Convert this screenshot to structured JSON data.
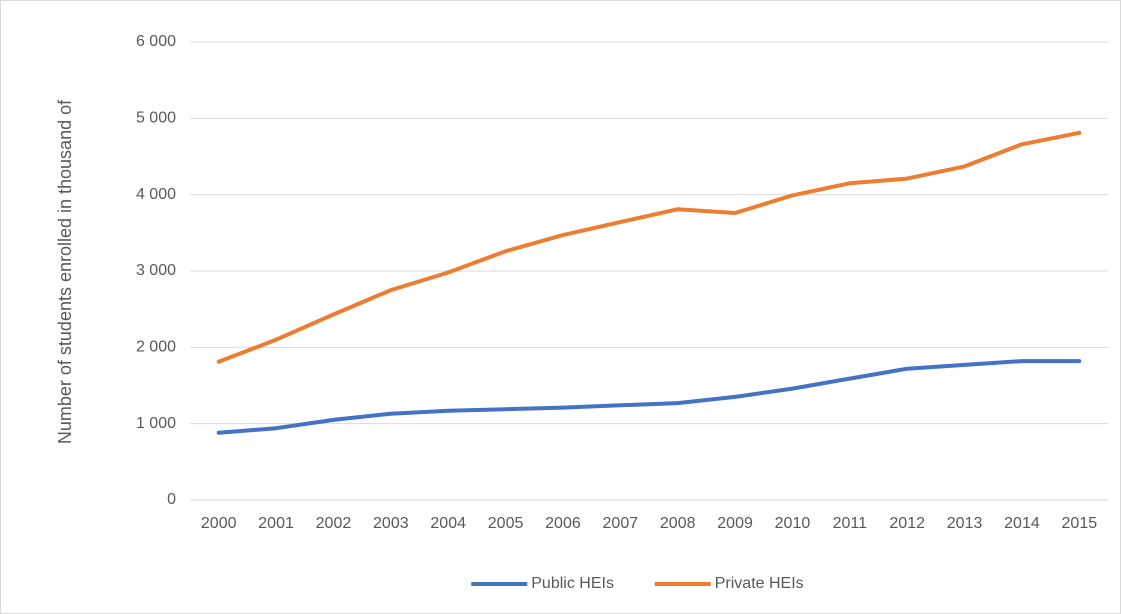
{
  "chart_data": {
    "type": "line",
    "y_label": "Number of students enrolled in thousand of",
    "categories": [
      "2000",
      "2001",
      "2002",
      "2003",
      "2004",
      "2005",
      "2006",
      "2007",
      "2008",
      "2009",
      "2010",
      "2011",
      "2012",
      "2013",
      "2014",
      "2015"
    ],
    "series": [
      {
        "name": "Public HEIs",
        "color": "#4472c4",
        "values": [
          880,
          940,
          1050,
          1130,
          1170,
          1190,
          1210,
          1240,
          1270,
          1350,
          1460,
          1590,
          1720,
          1770,
          1820,
          1820
        ]
      },
      {
        "name": "Private HEIs",
        "color": "#ed7d31",
        "values": [
          1810,
          2100,
          2430,
          2750,
          2980,
          3260,
          3470,
          3640,
          3810,
          3760,
          3990,
          4150,
          4210,
          4370,
          4660,
          4810
        ]
      }
    ],
    "ylim": [
      0,
      6000
    ],
    "yticks": [
      0,
      {
        "value": 1000,
        "label": "1 000"
      },
      {
        "value": 2000,
        "label": "2 000"
      },
      {
        "value": 3000,
        "label": "3 000"
      },
      {
        "value": 4000,
        "label": "4 000"
      },
      {
        "value": 5000,
        "label": "5 000"
      },
      {
        "value": 6000,
        "label": "6 000"
      }
    ],
    "grid": true,
    "legend": "bottom"
  }
}
